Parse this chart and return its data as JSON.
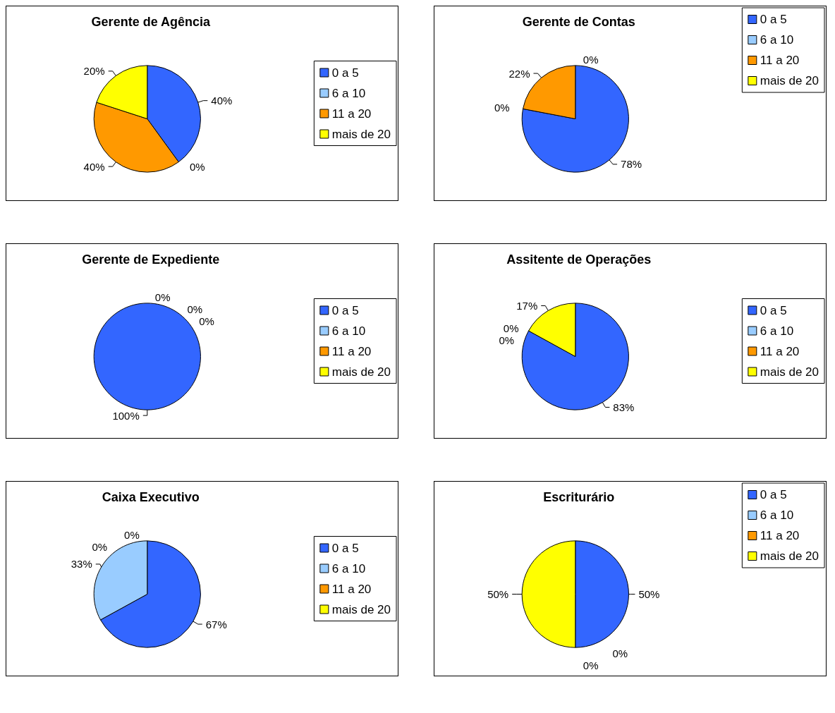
{
  "chart_data": [
    {
      "type": "pie",
      "title": "Gerente de Agência",
      "categories": [
        "0 a 5",
        "6 a 10",
        "11 a 20",
        "mais de 20"
      ],
      "values": [
        40,
        0,
        40,
        20
      ],
      "value_labels": [
        "40%",
        "0%",
        "40%",
        "20%"
      ],
      "colors": [
        "#3366ff",
        "#99ccff",
        "#ff9900",
        "#ffff00"
      ],
      "legend": "right"
    },
    {
      "type": "pie",
      "title": "Gerente de Contas",
      "categories": [
        "0 a 5",
        "6 a 10",
        "11 a 20",
        "mais de 20"
      ],
      "values": [
        78,
        0,
        22,
        0
      ],
      "value_labels": [
        "78%",
        "0%",
        "22%",
        "0%"
      ],
      "colors": [
        "#3366ff",
        "#99ccff",
        "#ff9900",
        "#ffff00"
      ],
      "legend": "top right"
    },
    {
      "type": "pie",
      "title": "Gerente de Expediente",
      "categories": [
        "0 a 5",
        "6 a 10",
        "11 a 20",
        "mais de 20"
      ],
      "values": [
        100,
        0,
        0,
        0
      ],
      "value_labels": [
        "100%",
        "0%",
        "0%",
        "0%"
      ],
      "colors": [
        "#3366ff",
        "#99ccff",
        "#ff9900",
        "#ffff00"
      ],
      "legend": "right"
    },
    {
      "type": "pie",
      "title": "Assitente de Operações",
      "categories": [
        "0 a 5",
        "6 a 10",
        "11 a 20",
        "mais de 20"
      ],
      "values": [
        83,
        0,
        0,
        17
      ],
      "value_labels": [
        "83%",
        "0%",
        "0%",
        "17%"
      ],
      "colors": [
        "#3366ff",
        "#99ccff",
        "#ff9900",
        "#ffff00"
      ],
      "legend": "right"
    },
    {
      "type": "pie",
      "title": "Caixa Executivo",
      "categories": [
        "0 a 5",
        "6 a 10",
        "11 a 20",
        "mais de 20"
      ],
      "values": [
        67,
        33,
        0,
        0
      ],
      "value_labels": [
        "67%",
        "33%",
        "0%",
        "0%"
      ],
      "colors": [
        "#3366ff",
        "#99ccff",
        "#ff9900",
        "#ffff00"
      ],
      "legend": "right"
    },
    {
      "type": "pie",
      "title": "Escriturário",
      "categories": [
        "0 a 5",
        "6 a 10",
        "11 a 20",
        "mais de 20"
      ],
      "values": [
        50,
        0,
        0,
        50
      ],
      "value_labels": [
        "50%",
        "0%",
        "0%",
        "50%"
      ],
      "colors": [
        "#3366ff",
        "#99ccff",
        "#ff9900",
        "#ffff00"
      ],
      "legend": "top right"
    }
  ]
}
